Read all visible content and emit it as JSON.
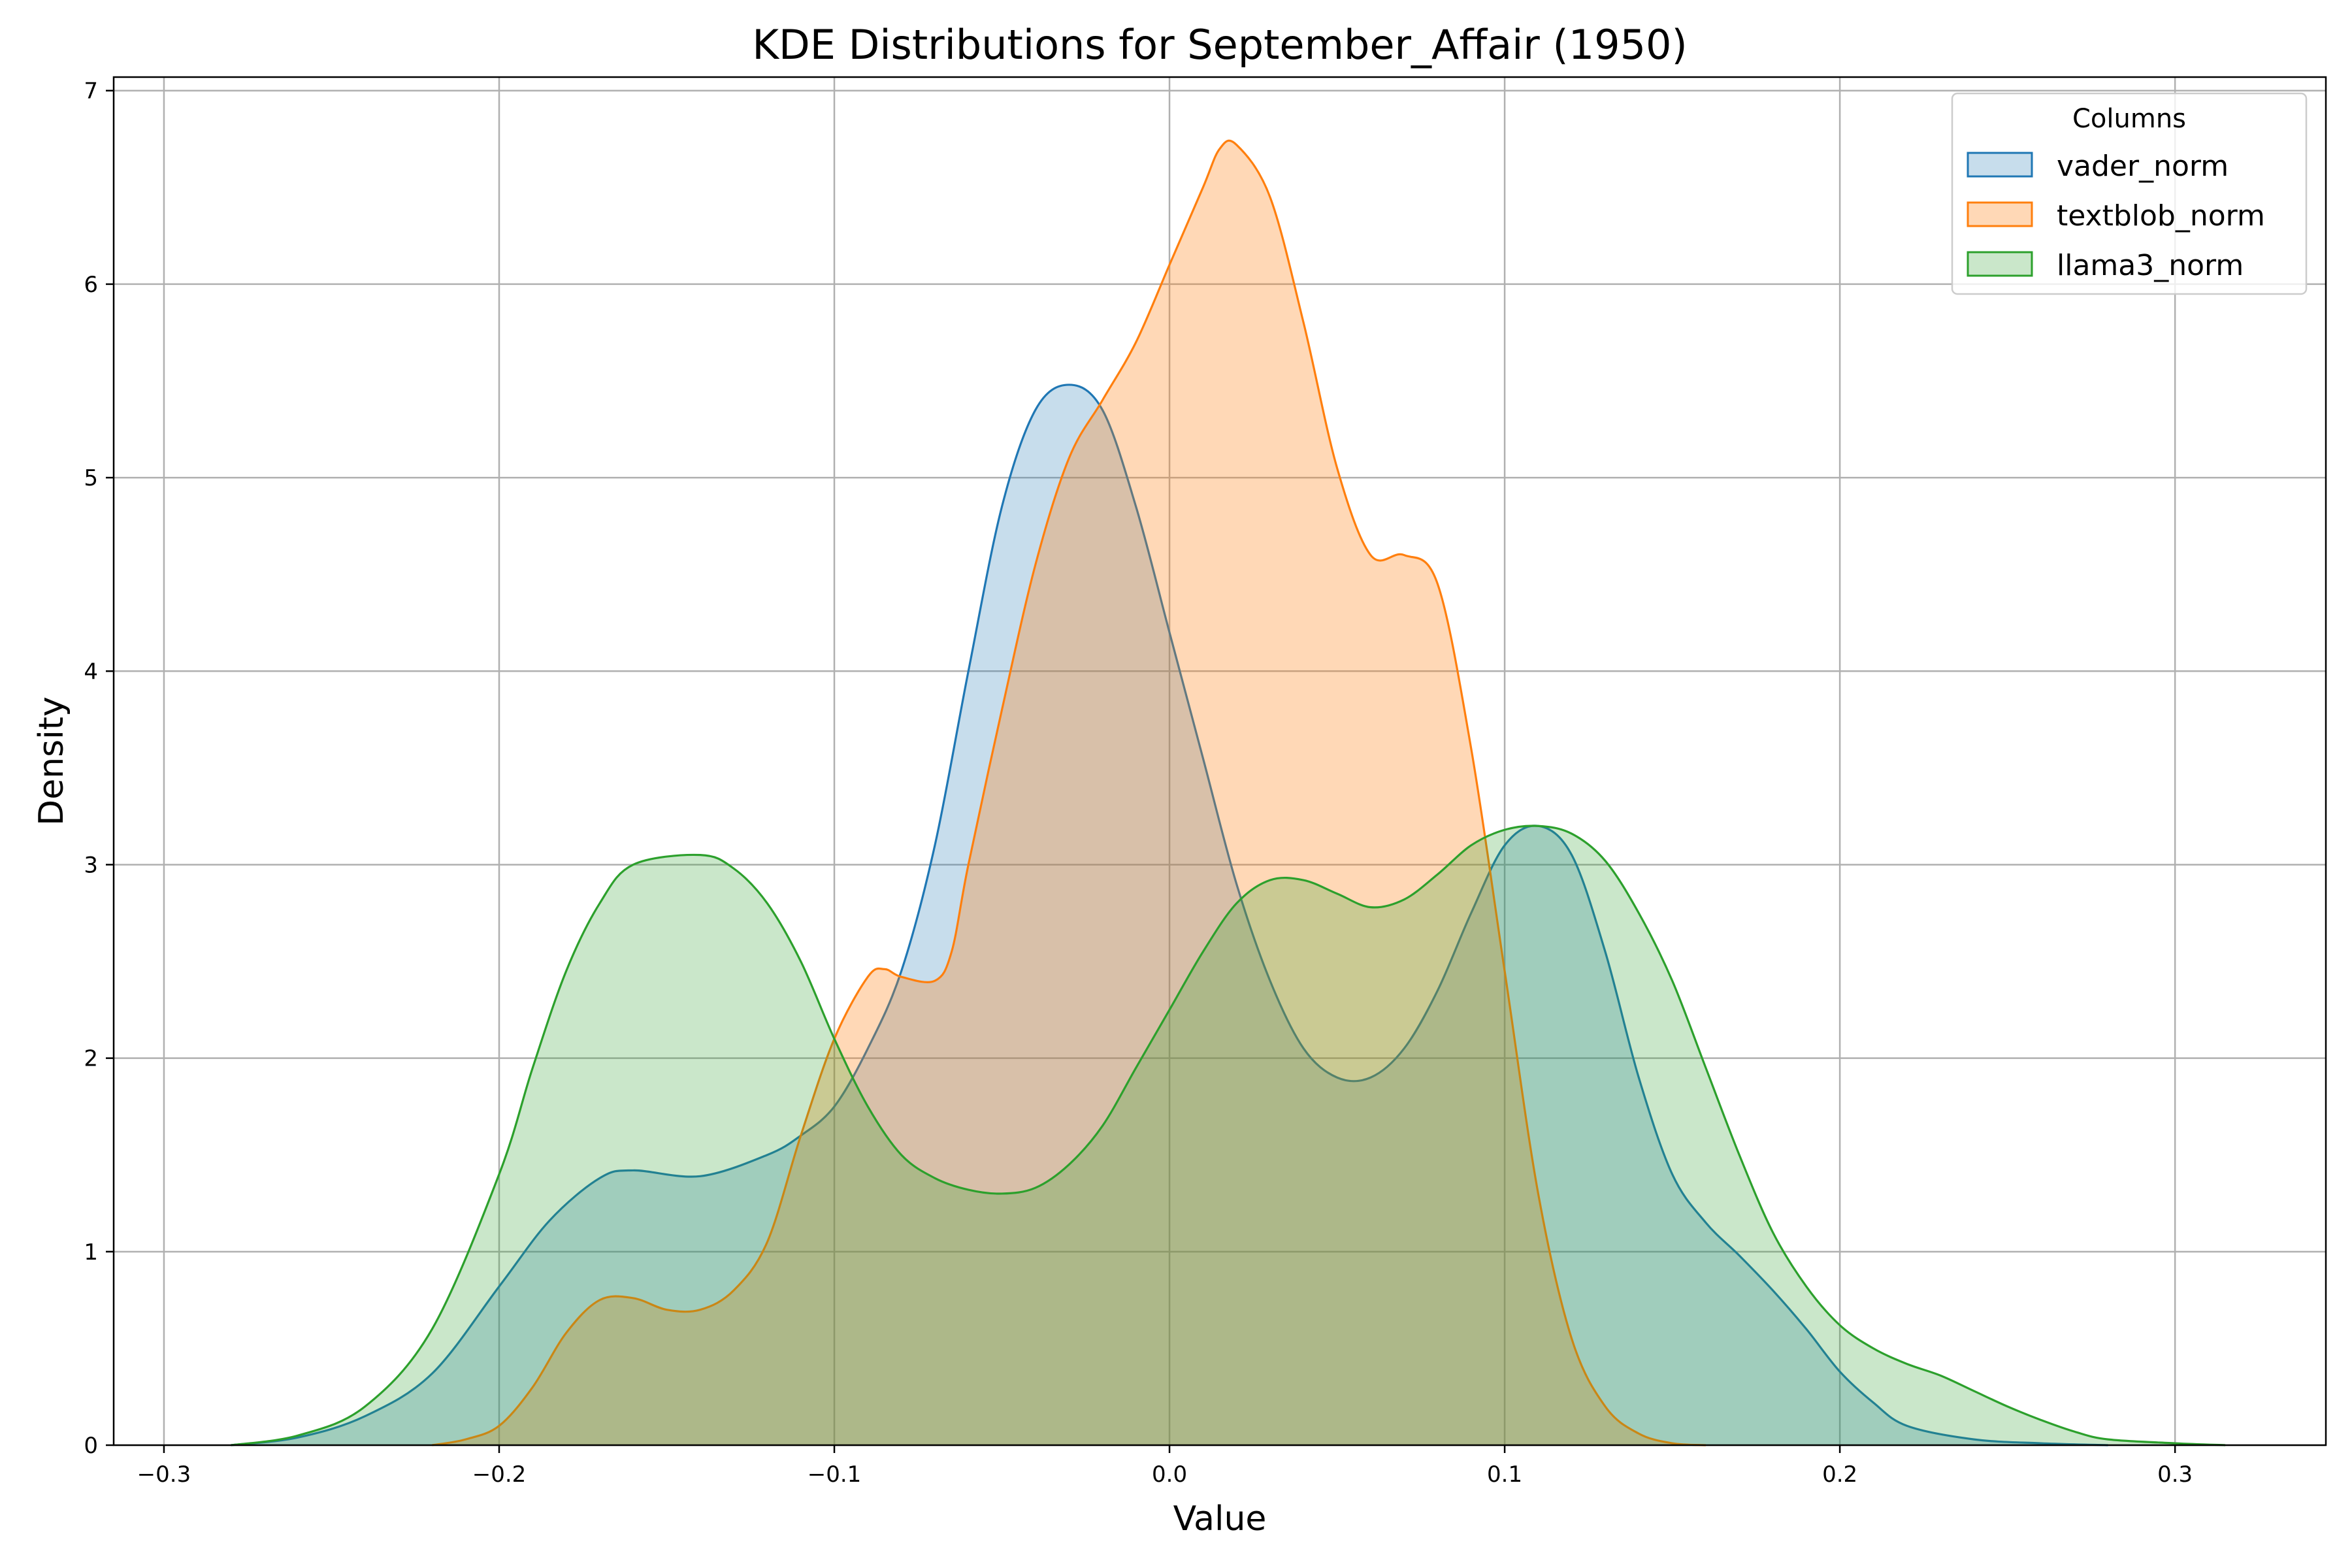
{
  "chart_data": {
    "type": "area",
    "title": "KDE Distributions for September_Affair (1950)",
    "xlabel": "Value",
    "ylabel": "Density",
    "xlim": [
      -0.315,
      0.345
    ],
    "ylim": [
      0,
      7.07
    ],
    "x_ticks": [
      -0.3,
      -0.2,
      -0.1,
      0.0,
      0.1,
      0.2,
      0.3
    ],
    "x_tick_labels": [
      "−0.3",
      "−0.2",
      "−0.1",
      "0.0",
      "0.1",
      "0.2",
      "0.3"
    ],
    "y_ticks": [
      0,
      1,
      2,
      3,
      4,
      5,
      6,
      7
    ],
    "y_tick_labels": [
      "0",
      "1",
      "2",
      "3",
      "4",
      "5",
      "6",
      "7"
    ],
    "grid": true,
    "legend": {
      "title": "Columns",
      "placement": "top-right"
    },
    "series": [
      {
        "name": "vader_norm",
        "color": "#1f77b4",
        "fill_opacity": 0.25,
        "points": [
          [
            -0.28,
            0
          ],
          [
            -0.26,
            0.04
          ],
          [
            -0.24,
            0.15
          ],
          [
            -0.22,
            0.37
          ],
          [
            -0.2,
            0.82
          ],
          [
            -0.185,
            1.16
          ],
          [
            -0.17,
            1.38
          ],
          [
            -0.16,
            1.42
          ],
          [
            -0.14,
            1.39
          ],
          [
            -0.12,
            1.5
          ],
          [
            -0.11,
            1.6
          ],
          [
            -0.1,
            1.75
          ],
          [
            -0.09,
            2.05
          ],
          [
            -0.08,
            2.45
          ],
          [
            -0.07,
            3.1
          ],
          [
            -0.06,
            4.0
          ],
          [
            -0.05,
            4.85
          ],
          [
            -0.04,
            5.35
          ],
          [
            -0.03,
            5.48
          ],
          [
            -0.02,
            5.35
          ],
          [
            -0.01,
            4.85
          ],
          [
            0.0,
            4.2
          ],
          [
            0.01,
            3.55
          ],
          [
            0.02,
            2.9
          ],
          [
            0.03,
            2.4
          ],
          [
            0.04,
            2.05
          ],
          [
            0.05,
            1.9
          ],
          [
            0.06,
            1.9
          ],
          [
            0.07,
            2.05
          ],
          [
            0.08,
            2.35
          ],
          [
            0.09,
            2.75
          ],
          [
            0.1,
            3.1
          ],
          [
            0.11,
            3.2
          ],
          [
            0.12,
            3.05
          ],
          [
            0.13,
            2.55
          ],
          [
            0.14,
            1.9
          ],
          [
            0.15,
            1.4
          ],
          [
            0.16,
            1.15
          ],
          [
            0.17,
            0.98
          ],
          [
            0.18,
            0.8
          ],
          [
            0.19,
            0.6
          ],
          [
            0.2,
            0.38
          ],
          [
            0.21,
            0.22
          ],
          [
            0.22,
            0.1
          ],
          [
            0.24,
            0.03
          ],
          [
            0.26,
            0.01
          ],
          [
            0.28,
            0
          ]
        ]
      },
      {
        "name": "textblob_norm",
        "color": "#ff7f0e",
        "fill_opacity": 0.3,
        "points": [
          [
            -0.22,
            0
          ],
          [
            -0.21,
            0.03
          ],
          [
            -0.2,
            0.1
          ],
          [
            -0.19,
            0.3
          ],
          [
            -0.18,
            0.58
          ],
          [
            -0.17,
            0.75
          ],
          [
            -0.16,
            0.76
          ],
          [
            -0.15,
            0.7
          ],
          [
            -0.14,
            0.7
          ],
          [
            -0.13,
            0.8
          ],
          [
            -0.12,
            1.05
          ],
          [
            -0.11,
            1.6
          ],
          [
            -0.1,
            2.1
          ],
          [
            -0.09,
            2.42
          ],
          [
            -0.085,
            2.46
          ],
          [
            -0.08,
            2.42
          ],
          [
            -0.07,
            2.4
          ],
          [
            -0.065,
            2.55
          ],
          [
            -0.06,
            3.0
          ],
          [
            -0.05,
            3.8
          ],
          [
            -0.04,
            4.55
          ],
          [
            -0.03,
            5.1
          ],
          [
            -0.02,
            5.4
          ],
          [
            -0.01,
            5.7
          ],
          [
            0.0,
            6.1
          ],
          [
            0.01,
            6.5
          ],
          [
            0.015,
            6.7
          ],
          [
            0.02,
            6.72
          ],
          [
            0.03,
            6.45
          ],
          [
            0.04,
            5.8
          ],
          [
            0.05,
            5.05
          ],
          [
            0.06,
            4.6
          ],
          [
            0.07,
            4.6
          ],
          [
            0.08,
            4.45
          ],
          [
            0.09,
            3.6
          ],
          [
            0.1,
            2.45
          ],
          [
            0.11,
            1.3
          ],
          [
            0.12,
            0.55
          ],
          [
            0.13,
            0.2
          ],
          [
            0.14,
            0.06
          ],
          [
            0.15,
            0.01
          ],
          [
            0.16,
            0
          ]
        ]
      },
      {
        "name": "llama3_norm",
        "color": "#2ca02c",
        "fill_opacity": 0.25,
        "points": [
          [
            -0.28,
            0
          ],
          [
            -0.26,
            0.05
          ],
          [
            -0.24,
            0.2
          ],
          [
            -0.22,
            0.6
          ],
          [
            -0.2,
            1.4
          ],
          [
            -0.19,
            1.95
          ],
          [
            -0.18,
            2.45
          ],
          [
            -0.17,
            2.8
          ],
          [
            -0.16,
            3.0
          ],
          [
            -0.14,
            3.05
          ],
          [
            -0.13,
            2.98
          ],
          [
            -0.12,
            2.8
          ],
          [
            -0.11,
            2.5
          ],
          [
            -0.1,
            2.1
          ],
          [
            -0.09,
            1.75
          ],
          [
            -0.08,
            1.5
          ],
          [
            -0.07,
            1.38
          ],
          [
            -0.06,
            1.32
          ],
          [
            -0.05,
            1.3
          ],
          [
            -0.04,
            1.33
          ],
          [
            -0.03,
            1.45
          ],
          [
            -0.02,
            1.65
          ],
          [
            -0.01,
            1.95
          ],
          [
            0.0,
            2.25
          ],
          [
            0.01,
            2.55
          ],
          [
            0.02,
            2.8
          ],
          [
            0.03,
            2.92
          ],
          [
            0.04,
            2.92
          ],
          [
            0.05,
            2.85
          ],
          [
            0.06,
            2.78
          ],
          [
            0.07,
            2.82
          ],
          [
            0.08,
            2.95
          ],
          [
            0.09,
            3.1
          ],
          [
            0.1,
            3.18
          ],
          [
            0.11,
            3.2
          ],
          [
            0.12,
            3.16
          ],
          [
            0.13,
            3.02
          ],
          [
            0.14,
            2.75
          ],
          [
            0.15,
            2.4
          ],
          [
            0.16,
            1.95
          ],
          [
            0.17,
            1.5
          ],
          [
            0.18,
            1.1
          ],
          [
            0.19,
            0.82
          ],
          [
            0.2,
            0.62
          ],
          [
            0.21,
            0.5
          ],
          [
            0.22,
            0.42
          ],
          [
            0.23,
            0.36
          ],
          [
            0.24,
            0.28
          ],
          [
            0.25,
            0.2
          ],
          [
            0.26,
            0.13
          ],
          [
            0.27,
            0.07
          ],
          [
            0.28,
            0.03
          ],
          [
            0.3,
            0.01
          ],
          [
            0.315,
            0
          ]
        ]
      }
    ]
  }
}
